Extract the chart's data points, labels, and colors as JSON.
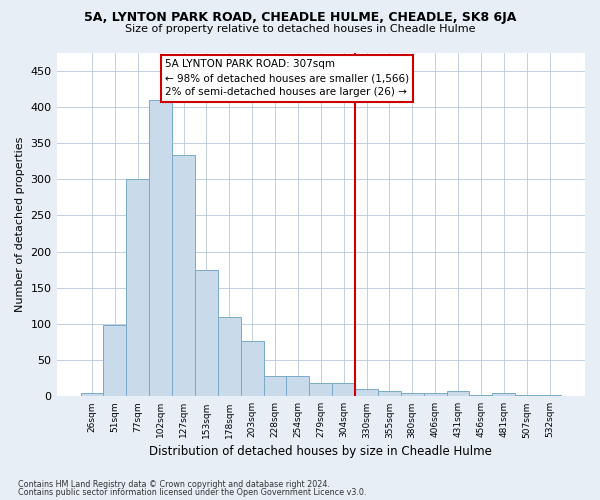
{
  "title1": "5A, LYNTON PARK ROAD, CHEADLE HULME, CHEADLE, SK8 6JA",
  "title2": "Size of property relative to detached houses in Cheadle Hulme",
  "xlabel": "Distribution of detached houses by size in Cheadle Hulme",
  "ylabel": "Number of detached properties",
  "bar_color": "#c9daea",
  "bar_edge_color": "#7aaac8",
  "categories": [
    "26sqm",
    "51sqm",
    "77sqm",
    "102sqm",
    "127sqm",
    "153sqm",
    "178sqm",
    "203sqm",
    "228sqm",
    "254sqm",
    "279sqm",
    "304sqm",
    "330sqm",
    "355sqm",
    "380sqm",
    "406sqm",
    "431sqm",
    "456sqm",
    "481sqm",
    "507sqm",
    "532sqm"
  ],
  "values": [
    5,
    99,
    300,
    410,
    333,
    175,
    110,
    77,
    28,
    28,
    18,
    18,
    10,
    7,
    4,
    4,
    7,
    2,
    5,
    2,
    2
  ],
  "ylim": [
    0,
    475
  ],
  "yticks": [
    0,
    50,
    100,
    150,
    200,
    250,
    300,
    350,
    400,
    450
  ],
  "vline_x": 11.5,
  "vline_color": "#cc0000",
  "annotation_line1": "5A LYNTON PARK ROAD: 307sqm",
  "annotation_line2": "← 98% of detached houses are smaller (1,566)",
  "annotation_line3": "2% of semi-detached houses are larger (26) →",
  "annotation_box_color": "#ffffff",
  "annotation_box_edge": "#cc0000",
  "footer1": "Contains HM Land Registry data © Crown copyright and database right 2024.",
  "footer2": "Contains public sector information licensed under the Open Government Licence v3.0.",
  "bg_color": "#e8eef6",
  "plot_bg_color": "#ffffff",
  "grid_color": "#b8c8dc"
}
